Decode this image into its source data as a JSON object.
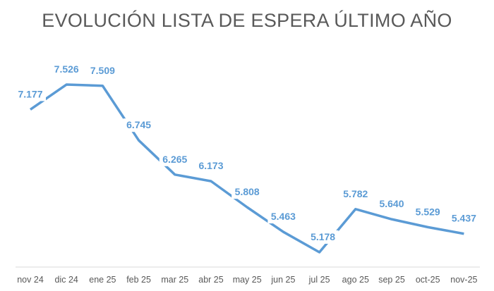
{
  "chart_data": {
    "type": "line",
    "title": "EVOLUCIÓN LISTA DE ESPERA ÚLTIMO AÑO",
    "xlabel": "",
    "ylabel": "",
    "categories": [
      "nov 24",
      "dic 24",
      "ene 25",
      "feb 25",
      "mar 25",
      "abr 25",
      "may 25",
      "jun 25",
      "jul 25",
      "ago 25",
      "sep 25",
      "oct-25",
      "nov-25"
    ],
    "series": [
      {
        "values": [
          7.177,
          7.526,
          7.509,
          6.745,
          6.265,
          6.173,
          5.808,
          5.463,
          5.178,
          5.782,
          5.64,
          5.529,
          5.437
        ]
      }
    ],
    "data_labels": [
      "7.177",
      "7.526",
      "7.509",
      "6.745",
      "6.265",
      "6.173",
      "5.808",
      "5.463",
      "5.178",
      "5.782",
      "5.640",
      "5.529",
      "5.437"
    ],
    "ylim": [
      5,
      8
    ],
    "grid": false,
    "legend": "none",
    "colors": {
      "line": "#5b9bd5",
      "label": "#5b9bd5",
      "axis": "#d9d9d9",
      "text": "#595959"
    }
  }
}
